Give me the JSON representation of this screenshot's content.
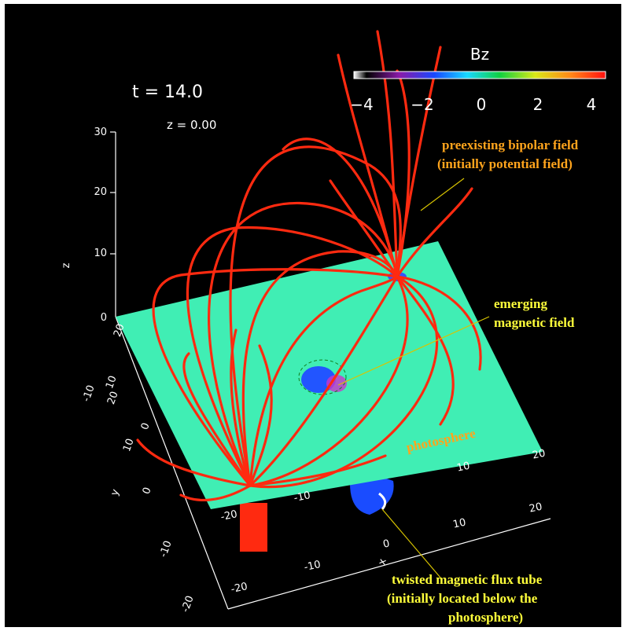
{
  "header": {
    "time": "t = 14.0",
    "height": "z = 0.00"
  },
  "colorbar": {
    "title": "Bz",
    "ticks": [
      "−4",
      "−2",
      "0",
      "2",
      "4"
    ]
  },
  "axes": {
    "z": {
      "label": "z",
      "ticks": [
        "30",
        "20",
        "10",
        "0"
      ]
    },
    "y": {
      "label": "y",
      "ticks": [
        "20",
        "10",
        "0",
        "-10",
        "-20"
      ]
    },
    "x": {
      "label": "x",
      "ticks": [
        "-20",
        "-10",
        "0",
        "10",
        "20"
      ]
    }
  },
  "plane": {
    "left_ticks": [
      "20",
      "10",
      "0",
      "-10"
    ],
    "bottom_ticks": [
      "-20",
      "-10",
      "10",
      "20"
    ]
  },
  "annotations": {
    "preexisting": [
      "preexisting bipolar field",
      "(initially potential field)"
    ],
    "emerging": [
      "emerging",
      "magnetic field"
    ],
    "photosphere": "photosphere",
    "flux_tube": [
      "twisted magnetic flux tube",
      "(initially located below the",
      "photosphere)"
    ]
  }
}
